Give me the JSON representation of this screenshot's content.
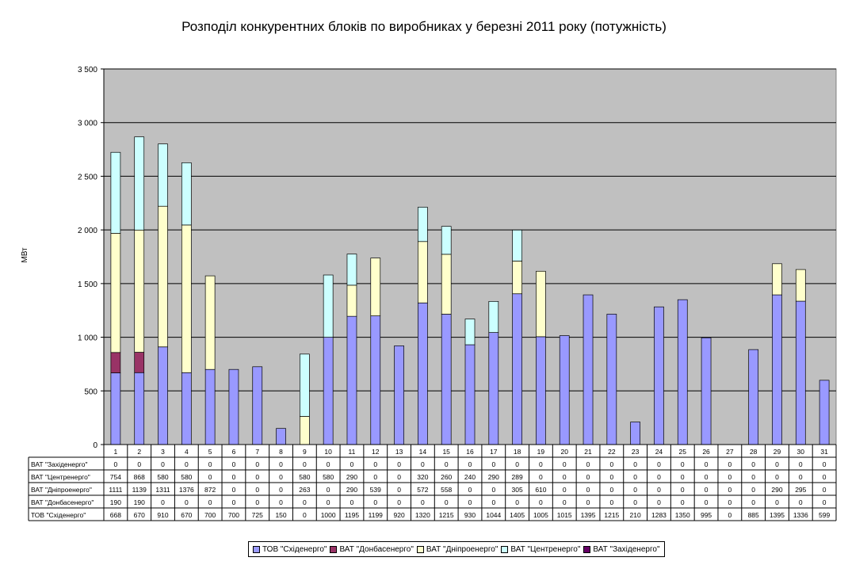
{
  "chart_data": {
    "type": "bar",
    "stacked": true,
    "title": "Розподіл конкурентних блоків по виробниках у березні 2011 року (потужність)",
    "ylabel": "МВт",
    "ylim": [
      0,
      3500
    ],
    "yticks": [
      "0",
      "500",
      "1 000",
      "1 500",
      "2 000",
      "2 500",
      "3 000",
      "3 500"
    ],
    "grid": true,
    "legend_position": "bottom",
    "categories": [
      "1",
      "2",
      "3",
      "4",
      "5",
      "6",
      "7",
      "8",
      "9",
      "10",
      "11",
      "12",
      "13",
      "14",
      "15",
      "16",
      "17",
      "18",
      "19",
      "20",
      "21",
      "22",
      "23",
      "24",
      "25",
      "26",
      "27",
      "28",
      "29",
      "30",
      "31"
    ],
    "series": [
      {
        "name": "ТОВ \"Східенерго\"",
        "color": "#9999ff",
        "values": [
          668,
          670,
          910,
          670,
          700,
          700,
          725,
          150,
          0,
          1000,
          1195,
          1199,
          920,
          1320,
          1215,
          930,
          1044,
          1405,
          1005,
          1015,
          1395,
          1215,
          210,
          1283,
          1350,
          995,
          0,
          885,
          1395,
          1336,
          599
        ]
      },
      {
        "name": "ВАТ \"Донбасенерго\"",
        "color": "#993366",
        "values": [
          190,
          190,
          0,
          0,
          0,
          0,
          0,
          0,
          0,
          0,
          0,
          0,
          0,
          0,
          0,
          0,
          0,
          0,
          0,
          0,
          0,
          0,
          0,
          0,
          0,
          0,
          0,
          0,
          0,
          0,
          0
        ]
      },
      {
        "name": "ВАТ \"Дніпроенерго\"",
        "color": "#ffffcc",
        "values": [
          1111,
          1139,
          1311,
          1376,
          872,
          0,
          0,
          0,
          263,
          0,
          290,
          539,
          0,
          572,
          558,
          0,
          0,
          305,
          610,
          0,
          0,
          0,
          0,
          0,
          0,
          0,
          0,
          0,
          290,
          295,
          0
        ]
      },
      {
        "name": "ВАТ \"Центренерго\"",
        "color": "#ccffff",
        "values": [
          754,
          868,
          580,
          580,
          0,
          0,
          0,
          0,
          580,
          580,
          290,
          0,
          0,
          320,
          260,
          240,
          290,
          289,
          0,
          0,
          0,
          0,
          0,
          0,
          0,
          0,
          0,
          0,
          0,
          0,
          0
        ]
      },
      {
        "name": "ВАТ \"Західенерго\"",
        "color": "#660066",
        "values": [
          0,
          0,
          0,
          0,
          0,
          0,
          0,
          0,
          0,
          0,
          0,
          0,
          0,
          0,
          0,
          0,
          0,
          0,
          0,
          0,
          0,
          0,
          0,
          0,
          0,
          0,
          0,
          0,
          0,
          0,
          0
        ]
      }
    ],
    "table_row_order": [
      "ВАТ \"Західенерго\"",
      "ВАТ \"Центренерго\"",
      "ВАТ \"Дніпроенерго\"",
      "ВАТ \"Донбасенерго\"",
      "ТОВ \"Східенерго\""
    ]
  },
  "colors": {
    "plot_bg": "#c0c0c0",
    "grid": "#000000",
    "bar_stroke": "#000000"
  }
}
